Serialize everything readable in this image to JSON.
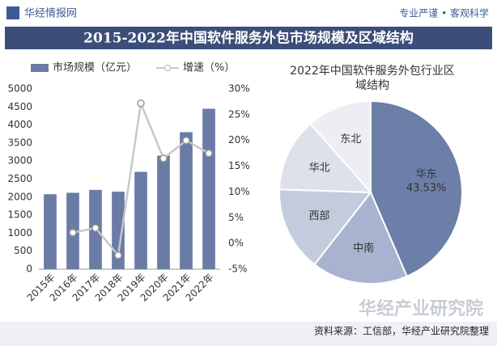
{
  "header": {
    "logo": "华经情报网",
    "slogan": "专业严谨 • 客观科学"
  },
  "title": "2015-2022年中国软件服务外包市场规模及区域结构",
  "chart_data": [
    {
      "type": "bar",
      "categories": [
        "2015年",
        "2016年",
        "2017年",
        "2018年",
        "2019年",
        "2020年",
        "2021年",
        "2022年"
      ],
      "series": [
        {
          "name": "市场规模（亿元）",
          "color": "#6a7ba6",
          "values": [
            2080,
            2120,
            2200,
            2150,
            2700,
            3150,
            3800,
            4450
          ]
        },
        {
          "name": "增速（%）",
          "color": "#c8c8c8",
          "axis": "y2",
          "kind": "line",
          "values": [
            null,
            2.1,
            3.0,
            -2.3,
            27.2,
            16.5,
            20.0,
            17.5
          ]
        }
      ],
      "ylim": [
        0,
        5000
      ],
      "yticks": [
        0,
        500,
        1000,
        1500,
        2000,
        2500,
        3000,
        3500,
        4000,
        4500,
        5000
      ],
      "y2lim": [
        -5,
        30
      ],
      "y2ticks": [
        {
          "value": -5,
          "label": "-5%"
        },
        {
          "value": 0,
          "label": "0%"
        },
        {
          "value": 5,
          "label": "5%"
        },
        {
          "value": 10,
          "label": "10%"
        },
        {
          "value": 15,
          "label": "15%"
        },
        {
          "value": 20,
          "label": "20%"
        },
        {
          "value": 25,
          "label": "25%"
        },
        {
          "value": 30,
          "label": "30%"
        }
      ]
    },
    {
      "type": "pie",
      "title": "2022年中国软件服务外包行业区域结构",
      "categories": [
        "华东",
        "中南",
        "西部",
        "华北",
        "东北"
      ],
      "values": [
        43.53,
        17,
        15,
        13,
        11.47
      ],
      "value_labels": [
        "43.53%",
        null,
        null,
        null,
        null
      ],
      "colors": [
        "#6b7fa8",
        "#a8b3cf",
        "#c4cbdc",
        "#dde1ea",
        "#eceef3"
      ]
    }
  ],
  "watermark": "华经产业研究院",
  "source": "资料来源：工信部，华经产业研究院整理"
}
